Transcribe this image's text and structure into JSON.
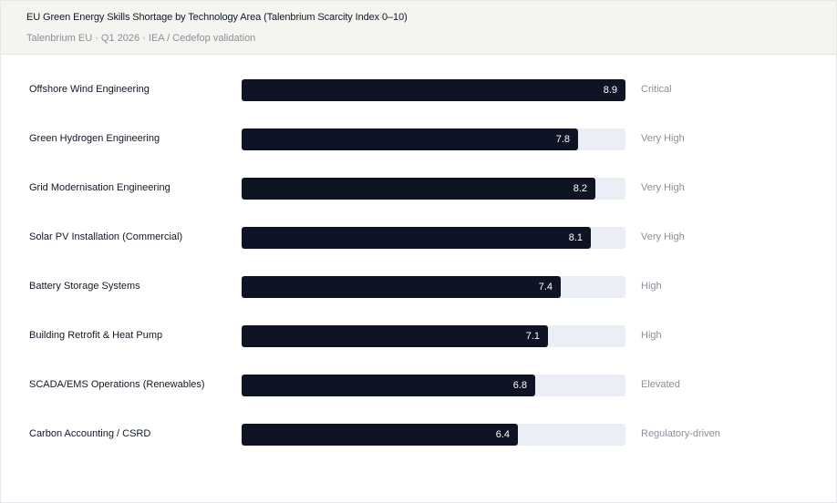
{
  "header": {
    "title": "EU Green Energy Skills Shortage by Technology Area (Talenbrium Scarcity Index 0–10)",
    "subtitle": "Talenbrium EU · Q1 2026 · IEA / Cedefop validation"
  },
  "chart_data": {
    "type": "bar",
    "orientation": "horizontal",
    "categories": [
      "Offshore Wind Engineering",
      "Green Hydrogen Engineering",
      "Grid Modernisation Engineering",
      "Solar PV Installation (Commercial)",
      "Battery Storage Systems",
      "Building Retrofit & Heat Pump",
      "SCADA/EMS Operations (Renewables)",
      "Carbon Accounting / CSRD"
    ],
    "values": [
      8.9,
      7.8,
      8.2,
      8.1,
      7.4,
      7.1,
      6.8,
      6.4
    ],
    "value_labels": [
      "8.9",
      "7.8",
      "8.2",
      "8.1",
      "7.4",
      "7.1",
      "6.8",
      "6.4"
    ],
    "ratings": [
      "Critical",
      "Very High",
      "Very High",
      "Very High",
      "High",
      "High",
      "Elevated",
      "Regulatory-driven"
    ],
    "xlim": [
      0,
      8.9
    ],
    "title": "EU Green Energy Skills Shortage by Technology Area (Talenbrium Scarcity Index 0–10)",
    "colors": {
      "bar": "#0f1424",
      "track": "#eceef5",
      "header_bg": "#f4f4f0"
    }
  }
}
